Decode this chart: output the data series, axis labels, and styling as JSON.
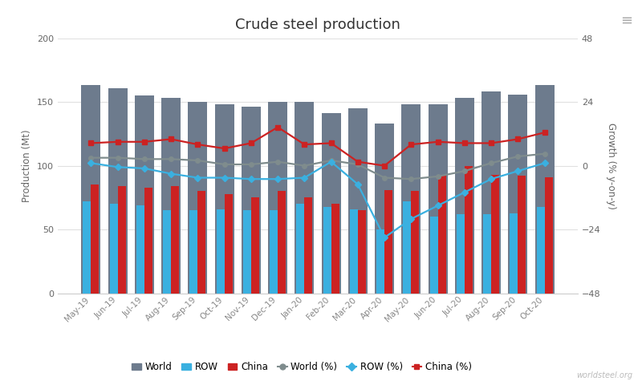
{
  "title": "Crude steel production",
  "ylabel_left": "Production (Mt)",
  "ylabel_right": "Growth (% y-on-y)",
  "categories": [
    "May-19",
    "Jun-19",
    "Jul-19",
    "Aug-19",
    "Sep-19",
    "Oct-19",
    "Nov-19",
    "Dec-19",
    "Jan-20",
    "Feb-20",
    "Mar-20",
    "Apr-20",
    "May-20",
    "Jun-20",
    "Jul-20",
    "Aug-20",
    "Sep-20",
    "Oct-20"
  ],
  "world": [
    163,
    161,
    155,
    153,
    150,
    148,
    146,
    150,
    150,
    141,
    145,
    133,
    148,
    148,
    153,
    158,
    156,
    163
  ],
  "row": [
    72,
    70,
    69,
    65,
    65,
    66,
    65,
    65,
    70,
    68,
    66,
    50,
    72,
    60,
    62,
    62,
    63,
    68
  ],
  "china": [
    85,
    84,
    83,
    84,
    80,
    78,
    75,
    80,
    75,
    70,
    65,
    81,
    80,
    92,
    100,
    93,
    92,
    91
  ],
  "world_pct": [
    3.0,
    3.0,
    2.5,
    2.5,
    2.0,
    0.5,
    0.5,
    1.5,
    0.0,
    2.0,
    0.5,
    -4.5,
    -5.0,
    -4.0,
    -2.0,
    1.0,
    3.5,
    4.5
  ],
  "row_pct": [
    1.0,
    -0.5,
    -1.0,
    -3.0,
    -4.5,
    -4.5,
    -5.0,
    -5.0,
    -4.5,
    1.5,
    -7.0,
    -27.0,
    -20.0,
    -15.0,
    -10.0,
    -5.0,
    -2.0,
    1.0
  ],
  "china_pct": [
    8.5,
    9.0,
    9.0,
    10.0,
    8.0,
    6.5,
    8.5,
    14.5,
    8.0,
    8.5,
    1.5,
    0.0,
    8.0,
    9.0,
    8.5,
    8.5,
    10.0,
    12.5
  ],
  "world_line_color": "#7f8c8d",
  "row_line_color": "#3ab0e0",
  "china_line_color": "#cc2222",
  "world_bar_color": "#6d7b8d",
  "row_bar_color": "#3ab0e0",
  "china_bar_color": "#cc2222",
  "ylim_left": [
    0,
    200
  ],
  "ylim_right": [
    -48,
    48
  ],
  "yticks_left": [
    0,
    50,
    100,
    150,
    200
  ],
  "yticks_right": [
    -48,
    -24,
    0,
    24,
    48
  ],
  "background_color": "#ffffff",
  "watermark": "worldsteel.org",
  "grid_color": "#e0e0e0",
  "spine_color": "#cccccc"
}
